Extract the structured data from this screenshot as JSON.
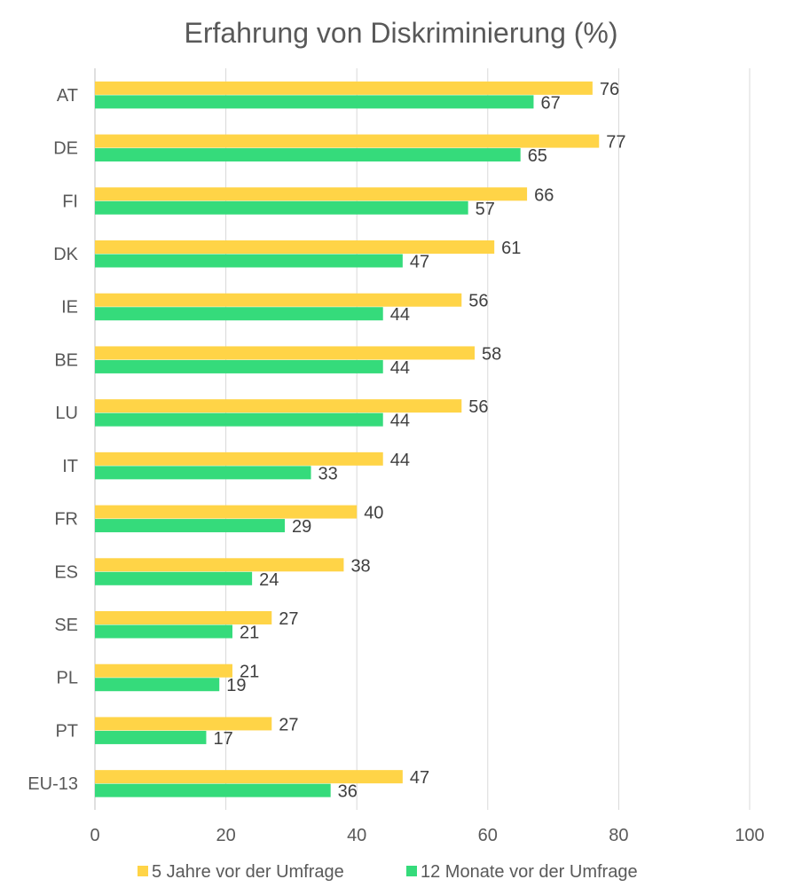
{
  "chart_data": {
    "type": "bar",
    "orientation": "horizontal",
    "title": "Erfahrung von Diskriminierung (%)",
    "categories": [
      "AT",
      "DE",
      "FI",
      "DK",
      "IE",
      "BE",
      "LU",
      "IT",
      "FR",
      "ES",
      "SE",
      "PL",
      "PT",
      "EU-13"
    ],
    "series": [
      {
        "name": "5 Jahre vor der Umfrage",
        "color": "#FFD447",
        "values": [
          76,
          77,
          66,
          61,
          56,
          58,
          56,
          44,
          40,
          38,
          27,
          21,
          27,
          47
        ]
      },
      {
        "name": "12 Monate vor der Umfrage",
        "color": "#35DB7B",
        "values": [
          67,
          65,
          57,
          47,
          44,
          44,
          44,
          33,
          29,
          24,
          21,
          19,
          17,
          36
        ]
      }
    ],
    "xlim": [
      0,
      100
    ],
    "xticks": [
      0,
      20,
      40,
      60,
      80,
      100
    ],
    "grid": "vertical",
    "legend": "bottom",
    "data_labels": true
  }
}
